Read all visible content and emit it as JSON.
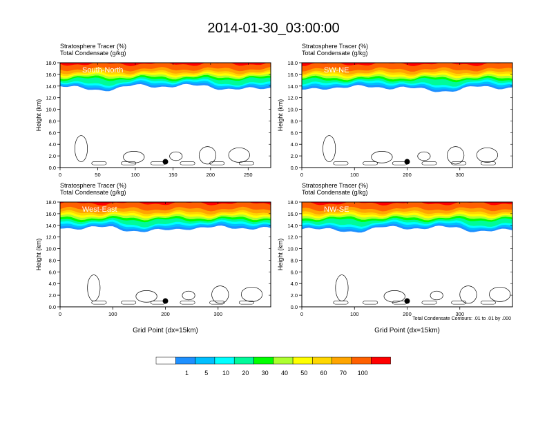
{
  "figure": {
    "title": "2014-01-30_03:00:00",
    "footer_note": "Total Condensate Contours: .01 to .01 by .000",
    "colorbar": {
      "colors": [
        "#ffffff",
        "#1e90ff",
        "#00bfff",
        "#00ffff",
        "#00fa9a",
        "#00ff00",
        "#adff2f",
        "#ffff00",
        "#ffd700",
        "#ffa500",
        "#ff6000",
        "#ff0000"
      ],
      "labels": [
        "1",
        "5",
        "10",
        "20",
        "30",
        "40",
        "50",
        "60",
        "70",
        "100"
      ]
    }
  },
  "chart_data": [
    {
      "type": "heatmap",
      "panel_label": "South-North",
      "title_line1": "Stratosphere Tracer   (%)",
      "title_line2": "Total Condensate   (g/kg)",
      "ylabel": "Height (km)",
      "xlabel": "",
      "xlim": [
        0,
        280
      ],
      "ylim": [
        0,
        18
      ],
      "xticks": [
        0,
        50,
        100,
        150,
        200,
        250
      ],
      "yticks": [
        "0.0",
        "2.0",
        "4.0",
        "6.0",
        "8.0",
        "10.0",
        "12.0",
        "14.0",
        "16.0",
        "18.0"
      ],
      "tracer_base_km": 14.2,
      "marker": {
        "x": 140,
        "y": 1.0
      }
    },
    {
      "type": "heatmap",
      "panel_label": "SW-NE",
      "title_line1": "Stratosphere Tracer   (%)",
      "title_line2": "Total Condensate   (g/kg)",
      "ylabel": "Height (km)",
      "xlabel": "",
      "xlim": [
        0,
        400
      ],
      "ylim": [
        0,
        18
      ],
      "xticks": [
        0,
        100,
        200,
        300
      ],
      "yticks": [
        "0.0",
        "2.0",
        "4.0",
        "6.0",
        "8.0",
        "10.0",
        "12.0",
        "14.0",
        "16.0",
        "18.0"
      ],
      "tracer_base_km": 14.0,
      "marker": {
        "x": 200,
        "y": 1.0
      }
    },
    {
      "type": "heatmap",
      "panel_label": "West-East",
      "title_line1": "Stratosphere Tracer   (%)",
      "title_line2": "Total Condensate   (g/kg)",
      "ylabel": "Height (km)",
      "xlabel": "Grid Point (dx=15km)",
      "xlim": [
        0,
        400
      ],
      "ylim": [
        0,
        18
      ],
      "xticks": [
        0,
        100,
        200,
        300
      ],
      "yticks": [
        "0.0",
        "2.0",
        "4.0",
        "6.0",
        "8.0",
        "10.0",
        "12.0",
        "14.0",
        "16.0",
        "18.0"
      ],
      "tracer_base_km": 13.8,
      "marker": {
        "x": 200,
        "y": 1.0
      }
    },
    {
      "type": "heatmap",
      "panel_label": "NW-SE",
      "title_line1": "Stratosphere Tracer   (%)",
      "title_line2": "Total Condensate   (g/kg)",
      "ylabel": "Height (km)",
      "xlabel": "Grid Point (dx=15km)",
      "xlim": [
        0,
        400
      ],
      "ylim": [
        0,
        18
      ],
      "xticks": [
        0,
        100,
        200,
        300
      ],
      "yticks": [
        "0.0",
        "2.0",
        "4.0",
        "6.0",
        "8.0",
        "10.0",
        "12.0",
        "14.0",
        "16.0",
        "18.0"
      ],
      "tracer_base_km": 13.8,
      "marker": {
        "x": 200,
        "y": 1.0
      }
    }
  ]
}
